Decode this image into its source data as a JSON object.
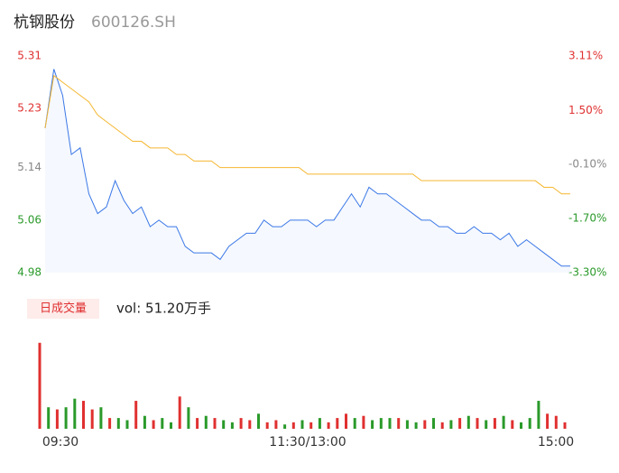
{
  "header": {
    "name": "杭钢股份",
    "code": "600126.SH"
  },
  "chart_data": {
    "type": "line",
    "x": [
      0,
      4,
      8,
      12,
      16,
      20,
      24,
      28,
      32,
      36,
      40,
      44,
      48,
      52,
      56,
      60,
      64,
      68,
      72,
      76,
      80,
      84,
      88,
      92,
      96,
      100,
      104,
      108,
      112,
      116,
      120,
      124,
      128,
      132,
      136,
      140,
      144,
      148,
      152,
      156,
      160,
      164,
      168,
      172,
      176,
      180,
      184,
      188,
      192,
      196,
      200,
      204,
      208,
      212,
      216,
      220,
      224,
      228,
      232,
      236,
      240
    ],
    "xlim": [
      0,
      240
    ],
    "xticks": [
      {
        "value": 0,
        "label": "09:30"
      },
      {
        "value": 120,
        "label": "11:30/13:00"
      },
      {
        "value": 240,
        "label": "15:00"
      }
    ],
    "ylim": [
      4.98,
      5.31
    ],
    "yticks": [
      4.98,
      5.06,
      5.14,
      5.23,
      5.31
    ],
    "ytick_colors": [
      "#2a9a2a",
      "#2a9a2a",
      "#888888",
      "#e03030",
      "#e03030"
    ],
    "y2lim": [
      -3.3,
      3.11
    ],
    "y2ticks": [
      {
        "value": -3.3,
        "label": "-3.30%"
      },
      {
        "value": -1.7,
        "label": "-1.70%"
      },
      {
        "value": -0.1,
        "label": "-0.10%"
      },
      {
        "value": 1.5,
        "label": "1.50%"
      },
      {
        "value": 3.11,
        "label": "3.11%"
      }
    ],
    "series": [
      {
        "color": "#3b78e7",
        "values": [
          5.2,
          5.29,
          5.25,
          5.16,
          5.17,
          5.1,
          5.07,
          5.08,
          5.12,
          5.09,
          5.07,
          5.08,
          5.05,
          5.06,
          5.05,
          5.05,
          5.02,
          5.01,
          5.01,
          5.01,
          5.0,
          5.02,
          5.03,
          5.04,
          5.04,
          5.06,
          5.05,
          5.05,
          5.06,
          5.06,
          5.06,
          5.05,
          5.06,
          5.06,
          5.08,
          5.1,
          5.08,
          5.11,
          5.1,
          5.1,
          5.09,
          5.08,
          5.07,
          5.06,
          5.06,
          5.05,
          5.05,
          5.04,
          5.04,
          5.05,
          5.04,
          5.04,
          5.03,
          5.04,
          5.02,
          5.03,
          5.02,
          5.01,
          5.0,
          4.99,
          4.99
        ]
      },
      {
        "color": "#f5b731",
        "values": [
          5.2,
          5.28,
          5.27,
          5.26,
          5.25,
          5.24,
          5.22,
          5.21,
          5.2,
          5.19,
          5.18,
          5.18,
          5.17,
          5.17,
          5.17,
          5.16,
          5.16,
          5.15,
          5.15,
          5.15,
          5.14,
          5.14,
          5.14,
          5.14,
          5.14,
          5.14,
          5.14,
          5.14,
          5.14,
          5.14,
          5.13,
          5.13,
          5.13,
          5.13,
          5.13,
          5.13,
          5.13,
          5.13,
          5.13,
          5.13,
          5.13,
          5.13,
          5.13,
          5.12,
          5.12,
          5.12,
          5.12,
          5.12,
          5.12,
          5.12,
          5.12,
          5.12,
          5.12,
          5.12,
          5.12,
          5.12,
          5.12,
          5.11,
          5.11,
          5.1,
          5.1
        ]
      }
    ]
  },
  "volume_chart": {
    "type": "bar",
    "label": "日成交量",
    "total": "vol: 51.20万手",
    "ylim": [
      0,
      4.2
    ],
    "values": [
      4.0,
      1.0,
      0.9,
      1.0,
      1.4,
      1.3,
      0.9,
      1.0,
      0.5,
      0.5,
      0.4,
      1.3,
      0.6,
      0.4,
      0.5,
      0.3,
      1.5,
      1.0,
      0.5,
      0.6,
      0.5,
      0.4,
      0.3,
      0.5,
      0.4,
      0.7,
      0.3,
      0.4,
      0.2,
      0.3,
      0.4,
      0.3,
      0.5,
      0.3,
      0.5,
      0.7,
      0.5,
      0.6,
      0.4,
      0.5,
      0.5,
      0.5,
      0.4,
      0.3,
      0.4,
      0.5,
      0.3,
      0.4,
      0.5,
      0.6,
      0.5,
      0.4,
      0.5,
      0.6,
      0.4,
      0.3,
      0.5,
      1.3,
      0.7,
      0.6,
      0.3
    ],
    "colors": [
      "#e03030",
      "#2a9a2a",
      "#e03030",
      "#2a9a2a",
      "#2a9a2a",
      "#e03030",
      "#e03030",
      "#2a9a2a",
      "#e03030",
      "#2a9a2a",
      "#2a9a2a",
      "#e03030",
      "#2a9a2a",
      "#e03030",
      "#2a9a2a",
      "#2a9a2a",
      "#e03030",
      "#2a9a2a",
      "#e03030",
      "#2a9a2a",
      "#e03030",
      "#2a9a2a",
      "#2a9a2a",
      "#e03030",
      "#e03030",
      "#2a9a2a",
      "#e03030",
      "#e03030",
      "#2a9a2a",
      "#e03030",
      "#2a9a2a",
      "#e03030",
      "#2a9a2a",
      "#e03030",
      "#e03030",
      "#e03030",
      "#2a9a2a",
      "#e03030",
      "#2a9a2a",
      "#2a9a2a",
      "#2a9a2a",
      "#e03030",
      "#2a9a2a",
      "#2a9a2a",
      "#e03030",
      "#2a9a2a",
      "#e03030",
      "#2a9a2a",
      "#e03030",
      "#2a9a2a",
      "#e03030",
      "#2a9a2a",
      "#e03030",
      "#2a9a2a",
      "#e03030",
      "#2a9a2a",
      "#2a9a2a",
      "#2a9a2a",
      "#e03030",
      "#e03030",
      "#e03030"
    ]
  }
}
